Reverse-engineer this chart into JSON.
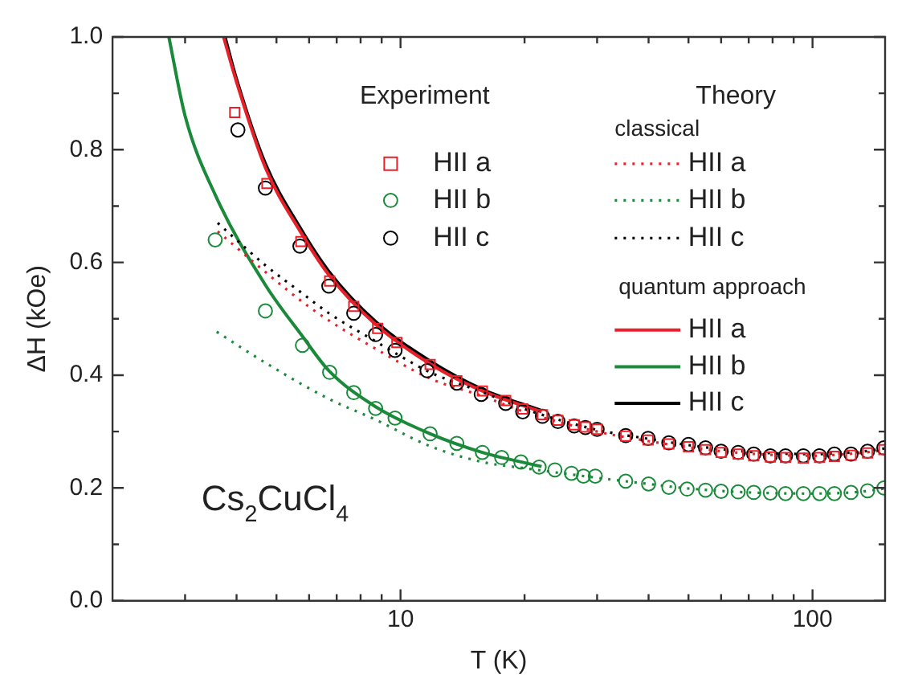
{
  "chart_data": {
    "type": "scatter",
    "xlabel": "T (K)",
    "ylabel": "ΔH (kOe)",
    "log": "x",
    "grid": false,
    "legend": "top right",
    "xlim": [
      2,
      150
    ],
    "xticks": [
      {
        "value": 3,
        "label": null
      },
      {
        "value": 4,
        "label": null
      },
      {
        "value": 5,
        "label": null
      },
      {
        "value": 6,
        "label": null
      },
      {
        "value": 7,
        "label": null
      },
      {
        "value": 8,
        "label": null
      },
      {
        "value": 9,
        "label": null
      },
      10,
      {
        "value": 20,
        "label": null
      },
      {
        "value": 30,
        "label": null
      },
      {
        "value": 40,
        "label": null
      },
      {
        "value": 50,
        "label": null
      },
      {
        "value": 60,
        "label": null
      },
      {
        "value": 70,
        "label": null
      },
      {
        "value": 80,
        "label": null
      },
      {
        "value": 90,
        "label": null
      },
      100
    ],
    "ylim": [
      0,
      1.0
    ],
    "yticks": [
      {
        "value": 0,
        "label": "0.0"
      },
      {
        "value": 0.1,
        "label": null
      },
      {
        "value": 0.2,
        "label": "0.2"
      },
      {
        "value": 0.3,
        "label": null
      },
      {
        "value": 0.4,
        "label": "0.4"
      },
      {
        "value": 0.5,
        "label": null
      },
      {
        "value": 0.6,
        "label": "0.6"
      },
      {
        "value": 0.7,
        "label": null
      },
      {
        "value": 0.8,
        "label": "0.8"
      },
      {
        "value": 0.9,
        "label": null
      },
      {
        "value": 1.0,
        "label": "1.0"
      }
    ],
    "annotations": [
      "Experiment",
      "Theory",
      "classical",
      "quantum approach",
      "Cs$_{2}$CuCl$_{4}$"
    ],
    "series": [
      {
        "name": "HII a",
        "type": "scatter",
        "marker": "square",
        "color": "#e8202a",
        "x": [
          3.96,
          4.74,
          5.73,
          6.73,
          7.7,
          8.8,
          9.8,
          11.8,
          13.7,
          15.8,
          18,
          19.8,
          22.1,
          24.1,
          26.4,
          28.1,
          30,
          35.2,
          39.9,
          44.8,
          50,
          55,
          60,
          66,
          72,
          79,
          86,
          95,
          104,
          113,
          124,
          136,
          149
        ],
        "values": [
          0.866,
          0.74,
          0.637,
          0.567,
          0.522,
          0.483,
          0.458,
          0.419,
          0.39,
          0.372,
          0.355,
          0.34,
          0.33,
          0.32,
          0.312,
          0.308,
          0.304,
          0.292,
          0.285,
          0.278,
          0.273,
          0.268,
          0.263,
          0.26,
          0.257,
          0.255,
          0.254,
          0.253,
          0.254,
          0.256,
          0.258,
          0.262,
          0.268
        ]
      },
      {
        "name": "HII b",
        "type": "scatter",
        "marker": "circle",
        "color": "#1a8a3a",
        "x": [
          3.55,
          4.7,
          5.78,
          6.73,
          7.7,
          8.7,
          9.7,
          11.8,
          13.7,
          15.8,
          17.6,
          19.6,
          21.7,
          23.7,
          26,
          27.8,
          29.7,
          35.2,
          40,
          44.8,
          49.6,
          55,
          60,
          66,
          72,
          79,
          86,
          95,
          104,
          113,
          124,
          136,
          149
        ],
        "values": [
          0.64,
          0.514,
          0.453,
          0.405,
          0.369,
          0.341,
          0.324,
          0.296,
          0.279,
          0.263,
          0.254,
          0.246,
          0.237,
          0.232,
          0.226,
          0.221,
          0.221,
          0.212,
          0.207,
          0.201,
          0.198,
          0.196,
          0.194,
          0.193,
          0.192,
          0.191,
          0.19,
          0.19,
          0.19,
          0.19,
          0.192,
          0.195,
          0.2
        ]
      },
      {
        "name": "HII c",
        "type": "scatter",
        "marker": "circle",
        "color": "#000000",
        "x": [
          4.03,
          4.7,
          5.7,
          6.7,
          7.7,
          8.7,
          9.7,
          11.6,
          13.7,
          15.7,
          18,
          19.8,
          22.1,
          24.1,
          26.4,
          28.1,
          30,
          35.2,
          39.9,
          44.8,
          50,
          55,
          60,
          66,
          72,
          79,
          86,
          95,
          104,
          113,
          124,
          136,
          149
        ],
        "values": [
          0.835,
          0.732,
          0.629,
          0.558,
          0.51,
          0.472,
          0.444,
          0.408,
          0.386,
          0.366,
          0.35,
          0.335,
          0.327,
          0.318,
          0.31,
          0.307,
          0.304,
          0.293,
          0.288,
          0.28,
          0.277,
          0.271,
          0.265,
          0.263,
          0.26,
          0.257,
          0.257,
          0.257,
          0.257,
          0.26,
          0.26,
          0.265,
          0.271
        ]
      },
      {
        "name": "HII a",
        "type": "line",
        "line_style": "dotted",
        "color": "#e8202a",
        "x": [
          3.6,
          4.7,
          5.78,
          6.7,
          8.7,
          11.8,
          15.8,
          20,
          30,
          40,
          50,
          70,
          100,
          130,
          150
        ],
        "values": [
          0.655,
          0.583,
          0.53,
          0.497,
          0.447,
          0.394,
          0.363,
          0.335,
          0.3,
          0.283,
          0.272,
          0.261,
          0.257,
          0.262,
          0.267
        ]
      },
      {
        "name": "HII b",
        "type": "line",
        "line_style": "dotted",
        "color": "#1a8a3a",
        "x": [
          3.58,
          4.7,
          6.7,
          8.7,
          11.8,
          15.8,
          20,
          30,
          40,
          50,
          70,
          100,
          130,
          150
        ],
        "values": [
          0.477,
          0.422,
          0.358,
          0.321,
          0.274,
          0.246,
          0.235,
          0.218,
          0.207,
          0.199,
          0.192,
          0.19,
          0.193,
          0.199
        ]
      },
      {
        "name": "HII c",
        "type": "line",
        "line_style": "dotted",
        "color": "#000000",
        "x": [
          3.6,
          4.7,
          5.78,
          6.7,
          8.7,
          11.8,
          15.8,
          20,
          30,
          40,
          50,
          70,
          100,
          130,
          150
        ],
        "values": [
          0.67,
          0.595,
          0.545,
          0.51,
          0.46,
          0.405,
          0.37,
          0.34,
          0.303,
          0.287,
          0.276,
          0.264,
          0.26,
          0.264,
          0.27
        ]
      },
      {
        "name": "HII a",
        "type": "line",
        "line_style": "solid",
        "color": "#e8202a",
        "x": [
          3.72,
          4,
          4.7,
          5.7,
          6.7,
          8.7,
          11.8,
          15.8,
          22
        ],
        "values": [
          1.0,
          0.92,
          0.768,
          0.656,
          0.578,
          0.49,
          0.42,
          0.372,
          0.335
        ]
      },
      {
        "name": "HII b",
        "type": "line",
        "line_style": "solid",
        "color": "#1a8a3a",
        "x": [
          2.74,
          3,
          3.55,
          4.7,
          5.78,
          6.7,
          8.7,
          11.8,
          15.8,
          22
        ],
        "values": [
          1.0,
          0.86,
          0.72,
          0.56,
          0.469,
          0.408,
          0.344,
          0.296,
          0.263,
          0.238
        ]
      },
      {
        "name": "HII c",
        "type": "line",
        "line_style": "solid",
        "color": "#000000",
        "x": [
          3.75,
          4,
          4.7,
          5.7,
          6.7,
          8.7,
          11.8,
          15.8,
          22
        ],
        "values": [
          1.0,
          0.925,
          0.775,
          0.662,
          0.584,
          0.495,
          0.425,
          0.375,
          0.337
        ]
      }
    ]
  }
}
